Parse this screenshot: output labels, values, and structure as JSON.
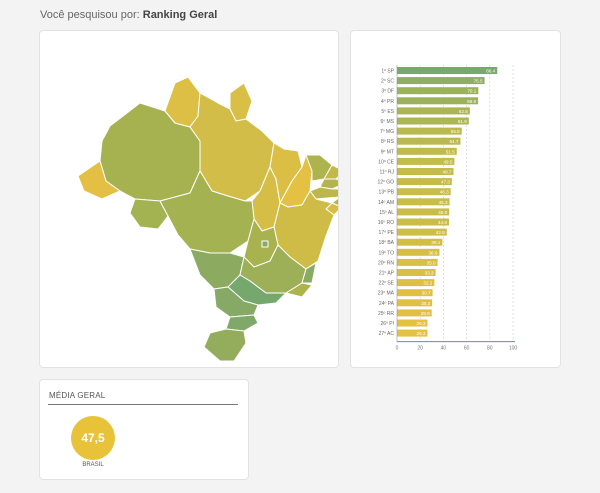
{
  "header": {
    "prefix": "Você pesquisou por:",
    "query": "Ranking Geral"
  },
  "colors": {
    "high": "#79a86c",
    "mid": "#b9b94e",
    "low": "#e5c142",
    "axis": "#4a7ab0",
    "grid": "#cccccc"
  },
  "media": {
    "title": "MÉDIA GERAL",
    "value": "47,5",
    "label": "BRASIL"
  },
  "chart_data": {
    "type": "bar",
    "orientation": "horizontal",
    "categories": [
      "1º SP",
      "2º SC",
      "3º DF",
      "4º PR",
      "5º ES",
      "6º MS",
      "7º MG",
      "8º RS",
      "9º MT",
      "10º CE",
      "11º RJ",
      "12º GO",
      "13º PB",
      "14º AM",
      "15º AL",
      "16º RO",
      "17º PE",
      "18º BA",
      "19º TO",
      "20º RN",
      "21º AP",
      "22º SE",
      "23º MA",
      "24º PA",
      "25º RR",
      "26º PI",
      "27º AC"
    ],
    "values": [
      86.4,
      75.5,
      70.1,
      69.9,
      62.8,
      61.9,
      55.8,
      54.7,
      51.5,
      49.5,
      48.7,
      47.3,
      46.3,
      45.3,
      45.0,
      44.8,
      42.9,
      39.1,
      36.6,
      35.0,
      33.3,
      32.2,
      30.7,
      30.3,
      29.9,
      26.3,
      26.3
    ],
    "value_labels": [
      "86.4",
      "75.5",
      "70.1",
      "69.9",
      "62.8",
      "61.9",
      "55.8",
      "54.7",
      "51.5",
      "49.5",
      "48.7",
      "47.3",
      "46.3",
      "45.3",
      "45.0",
      "44.8",
      "42.9",
      "39.1",
      "36.6",
      "35.0",
      "33.3",
      "32.2",
      "30.7",
      "30.3",
      "29.9",
      "26.3",
      "26.3"
    ],
    "xlim": [
      0,
      100
    ],
    "xticks": [
      "0",
      "20",
      "40",
      "60",
      "80",
      "100"
    ],
    "grid": true
  }
}
